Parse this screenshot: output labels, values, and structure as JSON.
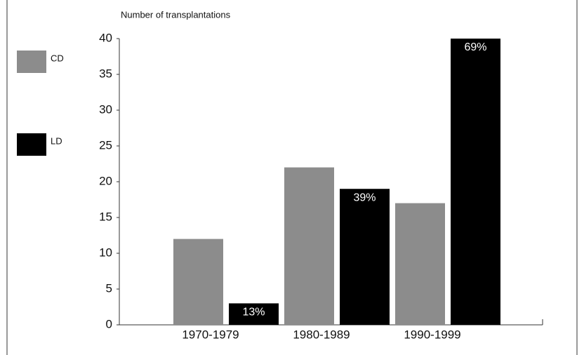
{
  "chart_data": {
    "type": "bar",
    "y_axis_label": "Number of transplantations",
    "categories": [
      "1970-1979",
      "1980-1989",
      "1990-1999"
    ],
    "series": [
      {
        "name": "CD",
        "color": "#8c8c8c",
        "values": [
          12,
          22,
          17
        ]
      },
      {
        "name": "LD",
        "color": "#000000",
        "values": [
          3,
          19,
          40
        ]
      }
    ],
    "annotations": [
      "13%",
      "39%",
      "69%"
    ],
    "ylim": [
      0,
      40
    ],
    "yticks": [
      0,
      5,
      10,
      15,
      20,
      25,
      30,
      35,
      40
    ]
  }
}
